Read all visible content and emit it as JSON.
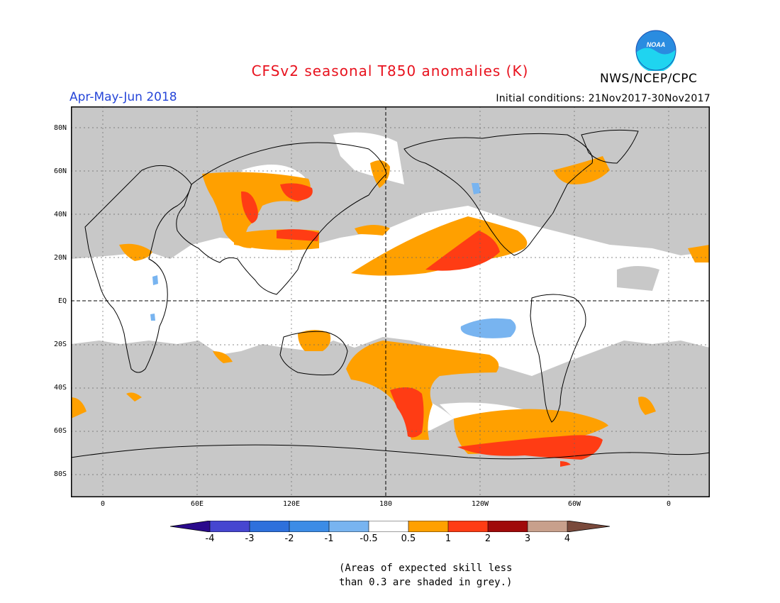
{
  "header": {
    "title": "CFSv2 seasonal T850 anomalies (K)",
    "season": "Apr-May-Jun 2018",
    "initial_conditions": "Initial conditions: 21Nov2017-30Nov2017",
    "agency": "NWS/NCEP/CPC",
    "logo_text": "NOAA"
  },
  "map": {
    "lat_labels": [
      "80N",
      "60N",
      "40N",
      "20N",
      "EQ",
      "20S",
      "40S",
      "60S",
      "80S"
    ],
    "lon_labels": [
      "0",
      "60E",
      "120E",
      "180",
      "120W",
      "60W",
      "0"
    ],
    "colors": {
      "skill_grey": "#c8c8c8",
      "ocean_white": "#ffffff",
      "anom_0_5_to_1": "#ffa000",
      "anom_1_to_2": "#ff3c14",
      "anom_neg_0_5_to_1": "#78b4f0",
      "coast": "#000000"
    }
  },
  "colorbar": {
    "labels": [
      "-4",
      "-3",
      "-2",
      "-1",
      "-0.5",
      "0.5",
      "1",
      "2",
      "3",
      "4"
    ],
    "colors": [
      "#2a0a8c",
      "#4646d0",
      "#2e70dc",
      "#3c8ce6",
      "#78b4f0",
      "#ffffff",
      "#ffa000",
      "#ff3c14",
      "#a00a0a",
      "#c8a08c",
      "#7a4a3c"
    ]
  },
  "footnote": {
    "line1": "(Areas of expected skill less",
    "line2": "than 0.3 are shaded in grey.)"
  }
}
